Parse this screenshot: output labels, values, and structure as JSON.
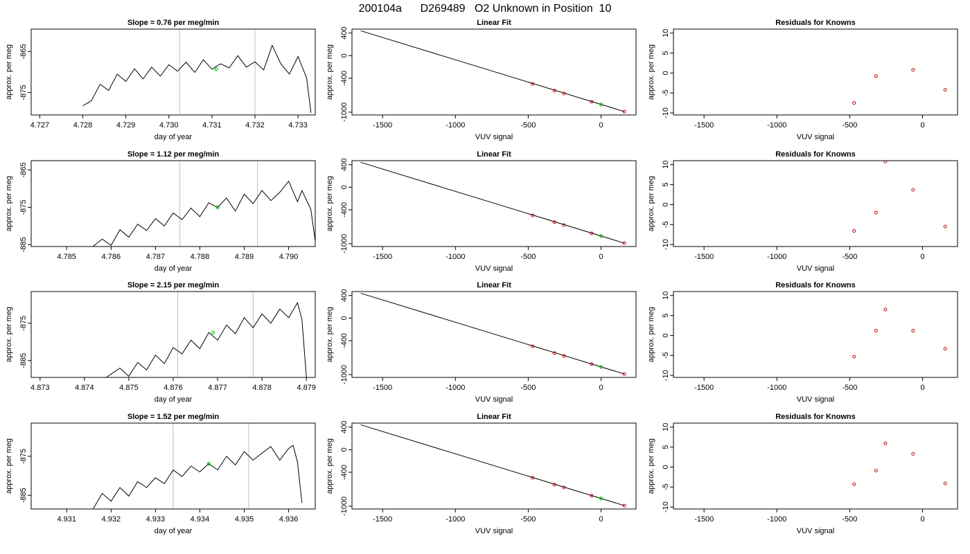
{
  "page": {
    "title": "200104a      D269489   O2 Unknown in Position  10"
  },
  "colors": {
    "trace": "#000000",
    "known": "#cc0000",
    "unknown": "#00cc00",
    "vline": "#bebebe",
    "axis": "#000000"
  },
  "chart_data": [
    {
      "type": "line",
      "panel": "ts",
      "row": 1,
      "title": "Slope =  0.76  per meg/min",
      "xlabel": "day of year",
      "ylabel": "approx. per meg",
      "xlim": [
        4.7268,
        4.7334
      ],
      "ylim": [
        -880.5,
        -859.5
      ],
      "xticks": [
        4.727,
        4.728,
        4.729,
        4.73,
        4.731,
        4.732,
        4.733
      ],
      "xtick_labels": [
        "4.727",
        "4.728",
        "4.729",
        "4.730",
        "4.731",
        "4.732",
        "4.733"
      ],
      "yticks": [
        -865,
        -875
      ],
      "ytick_labels": [
        "-865",
        "-875"
      ],
      "vlines": [
        4.73025,
        4.732
      ],
      "unknown_point": {
        "x": 4.7311,
        "y": -869.3
      },
      "trace": [
        [
          4.728,
          -878.3
        ],
        [
          4.7282,
          -877.0
        ],
        [
          4.7284,
          -873.0
        ],
        [
          4.7286,
          -874.5
        ],
        [
          4.7288,
          -870.5
        ],
        [
          4.729,
          -872.3
        ],
        [
          4.7292,
          -869.2
        ],
        [
          4.7294,
          -871.7
        ],
        [
          4.7296,
          -868.8
        ],
        [
          4.7298,
          -871.0
        ],
        [
          4.73,
          -868.2
        ],
        [
          4.7302,
          -869.8
        ],
        [
          4.7304,
          -867.6
        ],
        [
          4.7306,
          -870.1
        ],
        [
          4.7308,
          -867.0
        ],
        [
          4.731,
          -869.3
        ],
        [
          4.7312,
          -868.0
        ],
        [
          4.7314,
          -869.0
        ],
        [
          4.7316,
          -866.0
        ],
        [
          4.7318,
          -868.8
        ],
        [
          4.732,
          -867.5
        ],
        [
          4.7322,
          -869.5
        ],
        [
          4.7324,
          -863.5
        ],
        [
          4.7326,
          -868.0
        ],
        [
          4.7328,
          -870.5
        ],
        [
          4.733,
          -866.2
        ],
        [
          4.7332,
          -871.5
        ],
        [
          4.7333,
          -880.0
        ]
      ]
    },
    {
      "type": "line",
      "panel": "fit",
      "row": 1,
      "title": "Linear Fit",
      "xlabel": "VUV signal",
      "ylabel": "approx. per meg",
      "xlim": [
        -1710,
        240
      ],
      "ylim": [
        -1050,
        470
      ],
      "xticks": [
        -1500,
        -1000,
        -500,
        0
      ],
      "xtick_labels": [
        "-1500",
        "-1000",
        "-500",
        "0"
      ],
      "yticks": [
        400,
        0,
        -400,
        -1000
      ],
      "ytick_labels": [
        "400",
        "0",
        "-400",
        "-1000"
      ],
      "fit_line": [
        [
          -1650,
          440
        ],
        [
          160,
          -990
        ]
      ],
      "knowns": [
        [
          -470,
          -500
        ],
        [
          -320,
          -620
        ],
        [
          -255,
          -670
        ],
        [
          -65,
          -815
        ],
        [
          160,
          -990
        ]
      ],
      "unknown": [
        [
          0,
          -865
        ]
      ]
    },
    {
      "type": "scatter",
      "panel": "res",
      "row": 1,
      "title": "Residuals for Knowns",
      "xlabel": "VUV signal",
      "ylabel": "approx. per meg",
      "xlim": [
        -1710,
        240
      ],
      "ylim": [
        -10.5,
        11
      ],
      "xticks": [
        -1500,
        -1000,
        -500,
        0
      ],
      "xtick_labels": [
        "-1500",
        "-1000",
        "-500",
        "0"
      ],
      "yticks": [
        10,
        5,
        0,
        -5,
        -10
      ],
      "ytick_labels": [
        "10",
        "5",
        "0",
        "-5",
        "-10"
      ],
      "points": [
        [
          -470,
          -7.5
        ],
        [
          -320,
          -0.8
        ],
        [
          -65,
          0.8
        ],
        [
          155,
          -4.2
        ]
      ]
    },
    {
      "type": "line",
      "panel": "ts",
      "row": 2,
      "title": "Slope =  1.12  per meg/min",
      "xlabel": "day of year",
      "ylabel": "approx. per meg",
      "xlim": [
        4.7842,
        4.7906
      ],
      "ylim": [
        -885.5,
        -862.5
      ],
      "xticks": [
        4.785,
        4.786,
        4.787,
        4.788,
        4.789,
        4.79
      ],
      "xtick_labels": [
        "4.785",
        "4.786",
        "4.787",
        "4.788",
        "4.789",
        "4.790"
      ],
      "yticks": [
        -865,
        -875,
        -885
      ],
      "ytick_labels": [
        "-865",
        "-875",
        "-885"
      ],
      "vlines": [
        4.78755,
        4.7893
      ],
      "unknown_point": {
        "x": 4.7884,
        "y": -875.0
      },
      "trace": [
        [
          4.7856,
          -885.4
        ],
        [
          4.7858,
          -883.5
        ],
        [
          4.786,
          -885.2
        ],
        [
          4.7862,
          -881.0
        ],
        [
          4.7864,
          -883.0
        ],
        [
          4.7866,
          -879.5
        ],
        [
          4.7868,
          -881.2
        ],
        [
          4.787,
          -878.0
        ],
        [
          4.7872,
          -880.0
        ],
        [
          4.7874,
          -876.5
        ],
        [
          4.7876,
          -878.3
        ],
        [
          4.7878,
          -875.2
        ],
        [
          4.788,
          -877.5
        ],
        [
          4.7882,
          -873.8
        ],
        [
          4.7884,
          -875.0
        ],
        [
          4.7886,
          -872.5
        ],
        [
          4.7888,
          -876.0
        ],
        [
          4.789,
          -871.5
        ],
        [
          4.7892,
          -874.0
        ],
        [
          4.7894,
          -870.5
        ],
        [
          4.7896,
          -873.2
        ],
        [
          4.7898,
          -871.0
        ],
        [
          4.79,
          -868.0
        ],
        [
          4.7902,
          -873.5
        ],
        [
          4.7903,
          -870.5
        ],
        [
          4.7905,
          -875.5
        ],
        [
          4.7906,
          -884.0
        ]
      ]
    },
    {
      "type": "line",
      "panel": "fit",
      "row": 2,
      "title": "Linear Fit",
      "xlabel": "VUV signal",
      "ylabel": "approx. per meg",
      "xlim": [
        -1710,
        240
      ],
      "ylim": [
        -1050,
        470
      ],
      "xticks": [
        -1500,
        -1000,
        -500,
        0
      ],
      "xtick_labels": [
        "-1500",
        "-1000",
        "-500",
        "0"
      ],
      "yticks": [
        400,
        0,
        -400,
        -1000
      ],
      "ytick_labels": [
        "400",
        "0",
        "-400",
        "-1000"
      ],
      "fit_line": [
        [
          -1650,
          440
        ],
        [
          160,
          -990
        ]
      ],
      "knowns": [
        [
          -470,
          -500
        ],
        [
          -320,
          -620
        ],
        [
          -255,
          -670
        ],
        [
          -65,
          -815
        ],
        [
          160,
          -990
        ]
      ],
      "unknown": [
        [
          0,
          -865
        ]
      ]
    },
    {
      "type": "scatter",
      "panel": "res",
      "row": 2,
      "title": "Residuals for Knowns",
      "xlabel": "VUV signal",
      "ylabel": "approx. per meg",
      "xlim": [
        -1710,
        240
      ],
      "ylim": [
        -10.5,
        11
      ],
      "xticks": [
        -1500,
        -1000,
        -500,
        0
      ],
      "xtick_labels": [
        "-1500",
        "-1000",
        "-500",
        "0"
      ],
      "yticks": [
        10,
        5,
        0,
        -5,
        -10
      ],
      "ytick_labels": [
        "10",
        "5",
        "0",
        "-5",
        "-10"
      ],
      "points": [
        [
          -470,
          -6.6
        ],
        [
          -320,
          -2.0
        ],
        [
          -255,
          10.8
        ],
        [
          -65,
          3.7
        ],
        [
          155,
          -5.5
        ]
      ]
    },
    {
      "type": "line",
      "panel": "ts",
      "row": 3,
      "title": "Slope =  2.15  per meg/min",
      "xlabel": "day of year",
      "ylabel": "approx. per meg",
      "xlim": [
        4.8728,
        4.8792
      ],
      "ylim": [
        -889.5,
        -866.5
      ],
      "xticks": [
        4.873,
        4.874,
        4.875,
        4.876,
        4.877,
        4.878,
        4.879
      ],
      "xtick_labels": [
        "4.873",
        "4.874",
        "4.875",
        "4.876",
        "4.877",
        "4.878",
        "4.879"
      ],
      "yticks": [
        -875,
        -885
      ],
      "ytick_labels": [
        "-875",
        "-885"
      ],
      "vlines": [
        4.8761,
        4.8778
      ],
      "unknown_point": {
        "x": 4.8769,
        "y": -877.5
      },
      "trace": [
        [
          4.8745,
          -889.4
        ],
        [
          4.8748,
          -887.0
        ],
        [
          4.875,
          -889.2
        ],
        [
          4.8752,
          -885.5
        ],
        [
          4.8754,
          -887.5
        ],
        [
          4.8756,
          -883.5
        ],
        [
          4.8758,
          -885.8
        ],
        [
          4.876,
          -881.5
        ],
        [
          4.8762,
          -883.2
        ],
        [
          4.8764,
          -879.5
        ],
        [
          4.8766,
          -881.8
        ],
        [
          4.8768,
          -877.5
        ],
        [
          4.877,
          -879.5
        ],
        [
          4.8772,
          -875.5
        ],
        [
          4.8774,
          -877.8
        ],
        [
          4.8776,
          -873.5
        ],
        [
          4.8778,
          -876.2
        ],
        [
          4.878,
          -872.5
        ],
        [
          4.8782,
          -875.0
        ],
        [
          4.8784,
          -871.2
        ],
        [
          4.8786,
          -873.5
        ],
        [
          4.8788,
          -869.5
        ],
        [
          4.8789,
          -874.0
        ],
        [
          4.879,
          -889.4
        ]
      ]
    },
    {
      "type": "line",
      "panel": "fit",
      "row": 3,
      "title": "Linear Fit",
      "xlabel": "VUV signal",
      "ylabel": "approx. per meg",
      "xlim": [
        -1710,
        240
      ],
      "ylim": [
        -1050,
        470
      ],
      "xticks": [
        -1500,
        -1000,
        -500,
        0
      ],
      "xtick_labels": [
        "-1500",
        "-1000",
        "-500",
        "0"
      ],
      "yticks": [
        400,
        0,
        -400,
        -1000
      ],
      "ytick_labels": [
        "400",
        "0",
        "-400",
        "-1000"
      ],
      "fit_line": [
        [
          -1650,
          440
        ],
        [
          160,
          -990
        ]
      ],
      "knowns": [
        [
          -470,
          -500
        ],
        [
          -320,
          -620
        ],
        [
          -255,
          -670
        ],
        [
          -65,
          -815
        ],
        [
          160,
          -990
        ]
      ],
      "unknown": [
        [
          0,
          -865
        ]
      ]
    },
    {
      "type": "scatter",
      "panel": "res",
      "row": 3,
      "title": "Residuals for Knowns",
      "xlabel": "VUV signal",
      "ylabel": "approx. per meg",
      "xlim": [
        -1710,
        240
      ],
      "ylim": [
        -10.5,
        11
      ],
      "xticks": [
        -1500,
        -1000,
        -500,
        0
      ],
      "xtick_labels": [
        "-1500",
        "-1000",
        "-500",
        "0"
      ],
      "yticks": [
        10,
        5,
        0,
        -5,
        -10
      ],
      "ytick_labels": [
        "10",
        "5",
        "0",
        "-5",
        "-10"
      ],
      "points": [
        [
          -470,
          -5.3
        ],
        [
          -320,
          1.2
        ],
        [
          -255,
          6.5
        ],
        [
          -65,
          1.2
        ],
        [
          155,
          -3.3
        ]
      ]
    },
    {
      "type": "line",
      "panel": "ts",
      "row": 4,
      "title": "Slope =  1.52  per meg/min",
      "xlabel": "day of year",
      "ylabel": "approx. per meg",
      "xlim": [
        4.9302,
        4.9366
      ],
      "ylim": [
        -888.5,
        -866.5
      ],
      "xticks": [
        4.931,
        4.932,
        4.933,
        4.934,
        4.935,
        4.936
      ],
      "xtick_labels": [
        "4.931",
        "4.932",
        "4.933",
        "4.934",
        "4.935",
        "4.936"
      ],
      "yticks": [
        -875,
        -885
      ],
      "ytick_labels": [
        "-875",
        "-885"
      ],
      "vlines": [
        4.9334,
        4.9351
      ],
      "unknown_point": {
        "x": 4.9342,
        "y": -876.9
      },
      "trace": [
        [
          4.9316,
          -888.4
        ],
        [
          4.9318,
          -884.5
        ],
        [
          4.932,
          -886.5
        ],
        [
          4.9322,
          -883.0
        ],
        [
          4.9324,
          -885.2
        ],
        [
          4.9326,
          -881.5
        ],
        [
          4.9328,
          -883.0
        ],
        [
          4.933,
          -880.5
        ],
        [
          4.9332,
          -882.0
        ],
        [
          4.9334,
          -878.5
        ],
        [
          4.9336,
          -880.2
        ],
        [
          4.9338,
          -877.5
        ],
        [
          4.934,
          -879.0
        ],
        [
          4.9342,
          -876.9
        ],
        [
          4.9344,
          -878.5
        ],
        [
          4.9346,
          -875.0
        ],
        [
          4.9348,
          -877.2
        ],
        [
          4.935,
          -873.8
        ],
        [
          4.9352,
          -876.0
        ],
        [
          4.9354,
          -874.2
        ],
        [
          4.9356,
          -872.5
        ],
        [
          4.9358,
          -876.0
        ],
        [
          4.936,
          -873.0
        ],
        [
          4.9361,
          -872.2
        ],
        [
          4.9362,
          -876.5
        ],
        [
          4.9363,
          -887.0
        ]
      ]
    },
    {
      "type": "line",
      "panel": "fit",
      "row": 4,
      "title": "Linear Fit",
      "xlabel": "VUV signal",
      "ylabel": "approx. per meg",
      "xlim": [
        -1710,
        240
      ],
      "ylim": [
        -1050,
        470
      ],
      "xticks": [
        -1500,
        -1000,
        -500,
        0
      ],
      "xtick_labels": [
        "-1500",
        "-1000",
        "-500",
        "0"
      ],
      "yticks": [
        400,
        0,
        -400,
        -1000
      ],
      "ytick_labels": [
        "400",
        "0",
        "-400",
        "-1000"
      ],
      "fit_line": [
        [
          -1650,
          440
        ],
        [
          160,
          -990
        ]
      ],
      "knowns": [
        [
          -470,
          -500
        ],
        [
          -320,
          -620
        ],
        [
          -255,
          -670
        ],
        [
          -65,
          -815
        ],
        [
          160,
          -990
        ]
      ],
      "unknown": [
        [
          0,
          -865
        ]
      ]
    },
    {
      "type": "scatter",
      "panel": "res",
      "row": 4,
      "title": "Residuals for Knowns",
      "xlabel": "VUV signal",
      "ylabel": "approx. per meg",
      "xlim": [
        -1710,
        240
      ],
      "ylim": [
        -10.5,
        11
      ],
      "xticks": [
        -1500,
        -1000,
        -500,
        0
      ],
      "xtick_labels": [
        "-1500",
        "-1000",
        "-500",
        "0"
      ],
      "yticks": [
        10,
        5,
        0,
        -5,
        -10
      ],
      "ytick_labels": [
        "10",
        "5",
        "0",
        "-5",
        "-10"
      ],
      "points": [
        [
          -470,
          -4.3
        ],
        [
          -320,
          -0.9
        ],
        [
          -255,
          5.9
        ],
        [
          -65,
          3.3
        ],
        [
          155,
          -4.1
        ]
      ]
    }
  ]
}
